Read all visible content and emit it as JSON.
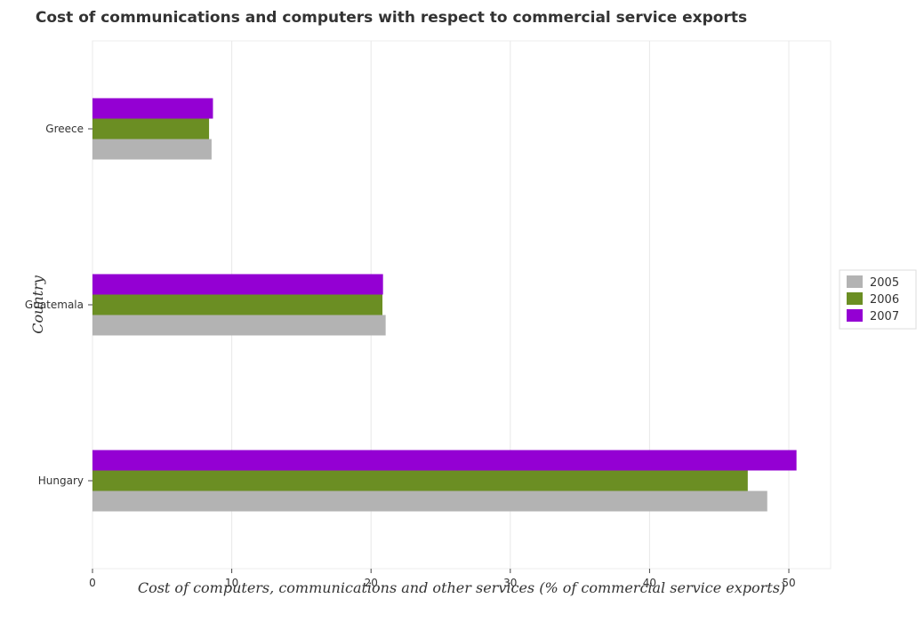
{
  "chart_data": {
    "type": "bar",
    "orientation": "horizontal",
    "title": "Cost of communications and computers with respect to commercial service exports",
    "xlabel": "Cost of computers, communications and other services (% of commercial service exports)",
    "ylabel": "Country",
    "categories": [
      "Greece",
      "Guatemala",
      "Hungary"
    ],
    "series": [
      {
        "name": "2005",
        "color": "#b3b3b3",
        "values": [
          8.55,
          21.05,
          48.45
        ]
      },
      {
        "name": "2006",
        "color": "#6b8e23",
        "values": [
          8.37,
          20.82,
          47.05
        ]
      },
      {
        "name": "2007",
        "color": "#9400d3",
        "values": [
          8.65,
          20.86,
          50.55
        ]
      }
    ],
    "xlim": [
      0,
      53
    ],
    "xticks": [
      0,
      10,
      20,
      30,
      40,
      50
    ],
    "grid": true,
    "legend_position": "right"
  }
}
